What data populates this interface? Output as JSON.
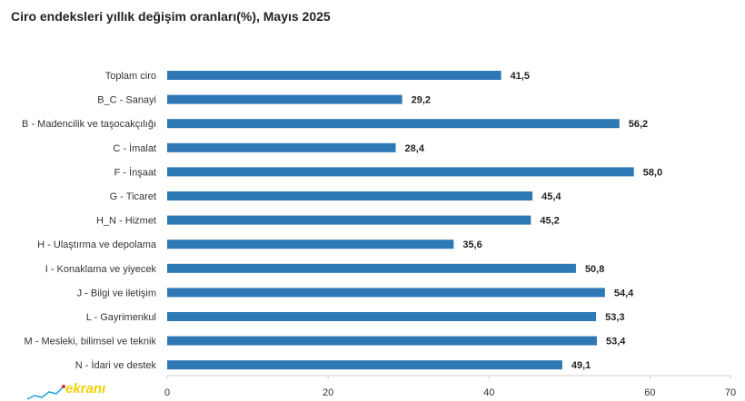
{
  "chart_data": {
    "type": "bar",
    "orientation": "horizontal",
    "title": "Ciro endeksleri yıllık değişim oranları(%), Mayıs 2025",
    "categories": [
      "Toplam ciro",
      "B_C - Sanayi",
      "B - Madencilik ve taşocakçılığı",
      "C - İmalat",
      "F - İnşaat",
      "G - Ticaret",
      "H_N - Hizmet",
      "H - Ulaştırma ve depolama",
      "I - Konaklama ve yiyecek",
      "J - Bilgi ve iletişim",
      "L - Gayrimenkul",
      "M - Mesleki, bilimsel ve teknik",
      "N - İdari ve destek"
    ],
    "values": [
      41.5,
      29.2,
      56.2,
      28.4,
      58.0,
      45.4,
      45.2,
      35.6,
      50.8,
      54.4,
      53.3,
      53.4,
      49.1
    ],
    "value_labels": [
      "41,5",
      "29,2",
      "56,2",
      "28,4",
      "58,0",
      "45,4",
      "45,2",
      "35,6",
      "50,8",
      "54,4",
      "53,3",
      "53,4",
      "49,1"
    ],
    "xticks": [
      "0",
      "20",
      "40",
      "60",
      "70"
    ],
    "xtick_values": [
      0,
      20,
      40,
      60,
      70
    ],
    "xlim": [
      0,
      70
    ],
    "xlabel": "",
    "ylabel": "",
    "grid": false,
    "bar_color": "#2e78b5"
  },
  "watermark": {
    "text": "ekranı",
    "color": "#f2d000"
  }
}
